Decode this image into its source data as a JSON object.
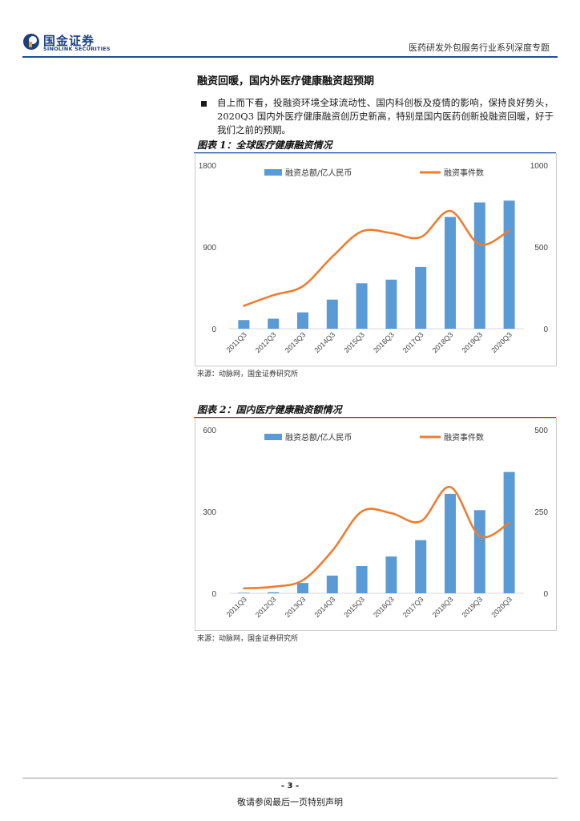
{
  "header": {
    "logo_cn": "国金证券",
    "logo_en": "SINOLINK SECURITIES",
    "report_title": "医药研发外包服务行业系列深度专题"
  },
  "section": {
    "title": "融资回暖，国内外医疗健康融资超预期",
    "paragraph": "自上而下看，投融资环境全球流动性、国内科创板及疫情的影响，保持良好势头，2020Q3 国内外医疗健康融资创历史新高，特别是国内医药创新投融资回暖，好于我们之前的预期。"
  },
  "figures": [
    {
      "title": "图表 1：全球医疗健康融资情况",
      "source": "来源：动脉网，国金证券研究所"
    },
    {
      "title": "图表 2：国内医疗健康融资额情况",
      "source": "来源：动脉网，国金证券研究所"
    }
  ],
  "colors": {
    "bar": "#5b9bd5",
    "line": "#ed7d31",
    "rule": "#1f4e9c",
    "grid": "#d9d9d9"
  },
  "chart_data": [
    {
      "type": "bar",
      "categories": [
        "2011Q3",
        "2012Q3",
        "2013Q3",
        "2014Q3",
        "2015Q3",
        "2016Q3",
        "2017Q3",
        "2018Q3",
        "2019Q3",
        "2020Q3"
      ],
      "series": [
        {
          "name": "融资总额/亿人民币",
          "type": "bar",
          "axis": "left",
          "values": [
            95,
            110,
            180,
            320,
            500,
            540,
            680,
            1230,
            1390,
            1410
          ]
        },
        {
          "name": "融资事件数",
          "type": "line",
          "axis": "right",
          "values": [
            140,
            205,
            260,
            440,
            595,
            585,
            560,
            720,
            515,
            600
          ]
        }
      ],
      "ylim_left": [
        0,
        1800
      ],
      "yticks_left": [
        0,
        900,
        1800
      ],
      "ylim_right": [
        0,
        1000
      ],
      "yticks_right": [
        0,
        500,
        1000
      ],
      "legend": "top"
    },
    {
      "type": "bar",
      "categories": [
        "2011Q3",
        "2012Q3",
        "2013Q3",
        "2014Q3",
        "2015Q3",
        "2016Q3",
        "2017Q3",
        "2018Q3",
        "2019Q3",
        "2020Q3"
      ],
      "series": [
        {
          "name": "融资总额/亿人民币",
          "type": "bar",
          "axis": "left",
          "values": [
            2,
            4,
            38,
            65,
            100,
            135,
            195,
            365,
            305,
            445
          ]
        },
        {
          "name": "融资事件数",
          "type": "line",
          "axis": "right",
          "values": [
            15,
            20,
            40,
            130,
            250,
            245,
            220,
            325,
            175,
            215
          ]
        }
      ],
      "ylim_left": [
        0,
        600
      ],
      "yticks_left": [
        0,
        300,
        600
      ],
      "ylim_right": [
        0,
        500
      ],
      "yticks_right": [
        0,
        250,
        500
      ],
      "legend": "top"
    }
  ],
  "footer": {
    "page_number": "- 3 -",
    "disclaimer": "敬请参阅最后一页特别声明"
  }
}
